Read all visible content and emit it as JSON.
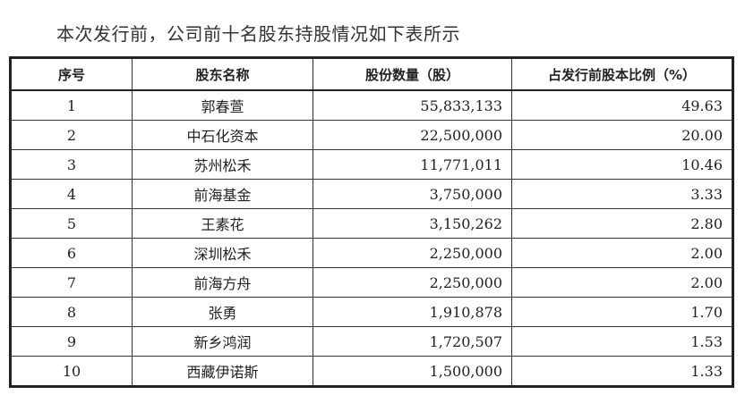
{
  "caption": "本次发行前，公司前十名股东持股情况如下表所示",
  "table": {
    "headers": [
      "序号",
      "股东名称",
      "股份数量（股）",
      "占发行前股本比例（%）"
    ],
    "rows": [
      [
        "1",
        "郭春萱",
        "55,833,133",
        "49.63"
      ],
      [
        "2",
        "中石化资本",
        "22,500,000",
        "20.00"
      ],
      [
        "3",
        "苏州松禾",
        "11,771,011",
        "10.46"
      ],
      [
        "4",
        "前海基金",
        "3,750,000",
        "3.33"
      ],
      [
        "5",
        "王素花",
        "3,150,262",
        "2.80"
      ],
      [
        "6",
        "深圳松禾",
        "2,250,000",
        "2.00"
      ],
      [
        "7",
        "前海方舟",
        "2,250,000",
        "2.00"
      ],
      [
        "8",
        "张勇",
        "1,910,878",
        "1.70"
      ],
      [
        "9",
        "新乡鸿润",
        "1,720,507",
        "1.53"
      ],
      [
        "10",
        "西藏伊诺斯",
        "1,500,000",
        "1.33"
      ]
    ]
  }
}
